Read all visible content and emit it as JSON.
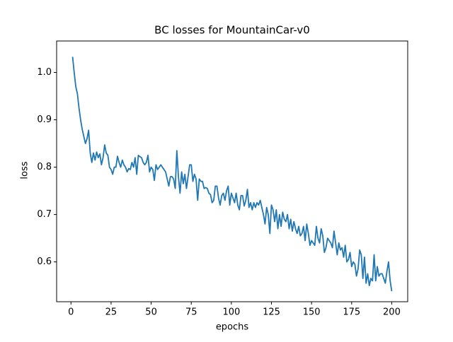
{
  "chart_data": {
    "type": "line",
    "title": "BC losses for MountainCar-v0",
    "xlabel": "epochs",
    "ylabel": "loss",
    "x": [
      1,
      2,
      3,
      4,
      5,
      6,
      7,
      8,
      9,
      10,
      11,
      12,
      13,
      14,
      15,
      16,
      17,
      18,
      19,
      20,
      21,
      22,
      23,
      24,
      25,
      26,
      27,
      28,
      29,
      30,
      31,
      32,
      33,
      34,
      35,
      36,
      37,
      38,
      39,
      40,
      41,
      42,
      43,
      44,
      45,
      46,
      47,
      48,
      49,
      50,
      51,
      52,
      53,
      54,
      55,
      56,
      57,
      58,
      59,
      60,
      61,
      62,
      63,
      64,
      65,
      66,
      67,
      68,
      69,
      70,
      71,
      72,
      73,
      74,
      75,
      76,
      77,
      78,
      79,
      80,
      81,
      82,
      83,
      84,
      85,
      86,
      87,
      88,
      89,
      90,
      91,
      92,
      93,
      94,
      95,
      96,
      97,
      98,
      99,
      100,
      101,
      102,
      103,
      104,
      105,
      106,
      107,
      108,
      109,
      110,
      111,
      112,
      113,
      114,
      115,
      116,
      117,
      118,
      119,
      120,
      121,
      122,
      123,
      124,
      125,
      126,
      127,
      128,
      129,
      130,
      131,
      132,
      133,
      134,
      135,
      136,
      137,
      138,
      139,
      140,
      141,
      142,
      143,
      144,
      145,
      146,
      147,
      148,
      149,
      150,
      151,
      152,
      153,
      154,
      155,
      156,
      157,
      158,
      159,
      160,
      161,
      162,
      163,
      164,
      165,
      166,
      167,
      168,
      169,
      170,
      171,
      172,
      173,
      174,
      175,
      176,
      177,
      178,
      179,
      180,
      181,
      182,
      183,
      184,
      185,
      186,
      187,
      188,
      189,
      190,
      191,
      192,
      193,
      194,
      195,
      196,
      197,
      198,
      199,
      200
    ],
    "series": [
      {
        "name": "loss",
        "color": "#1f77b4",
        "values": [
          1.033,
          1.0,
          0.97,
          0.955,
          0.925,
          0.9,
          0.88,
          0.865,
          0.85,
          0.86,
          0.878,
          0.83,
          0.81,
          0.83,
          0.815,
          0.832,
          0.82,
          0.828,
          0.805,
          0.82,
          0.847,
          0.83,
          0.825,
          0.8,
          0.795,
          0.785,
          0.8,
          0.8,
          0.823,
          0.81,
          0.8,
          0.815,
          0.805,
          0.8,
          0.79,
          0.797,
          0.795,
          0.81,
          0.8,
          0.82,
          0.785,
          0.825,
          0.822,
          0.82,
          0.81,
          0.805,
          0.81,
          0.825,
          0.79,
          0.8,
          0.795,
          0.772,
          0.805,
          0.795,
          0.8,
          0.805,
          0.8,
          0.795,
          0.79,
          0.775,
          0.76,
          0.78,
          0.78,
          0.775,
          0.755,
          0.835,
          0.78,
          0.745,
          0.79,
          0.765,
          0.785,
          0.755,
          0.78,
          0.805,
          0.805,
          0.77,
          0.785,
          0.775,
          0.73,
          0.775,
          0.77,
          0.77,
          0.755,
          0.757,
          0.755,
          0.745,
          0.742,
          0.725,
          0.73,
          0.76,
          0.76,
          0.735,
          0.72,
          0.74,
          0.745,
          0.73,
          0.75,
          0.76,
          0.72,
          0.745,
          0.735,
          0.725,
          0.745,
          0.72,
          0.71,
          0.74,
          0.74,
          0.718,
          0.73,
          0.753,
          0.715,
          0.725,
          0.71,
          0.725,
          0.715,
          0.725,
          0.72,
          0.73,
          0.715,
          0.7,
          0.68,
          0.715,
          0.7,
          0.66,
          0.72,
          0.71,
          0.685,
          0.71,
          0.67,
          0.7,
          0.675,
          0.705,
          0.69,
          0.685,
          0.7,
          0.67,
          0.69,
          0.665,
          0.685,
          0.67,
          0.66,
          0.675,
          0.655,
          0.66,
          0.675,
          0.645,
          0.68,
          0.66,
          0.635,
          0.645,
          0.64,
          0.635,
          0.675,
          0.65,
          0.64,
          0.67,
          0.655,
          0.62,
          0.63,
          0.65,
          0.645,
          0.64,
          0.63,
          0.665,
          0.64,
          0.615,
          0.64,
          0.625,
          0.63,
          0.61,
          0.635,
          0.6,
          0.605,
          0.62,
          0.59,
          0.6,
          0.595,
          0.57,
          0.585,
          0.625,
          0.615,
          0.565,
          0.61,
          0.555,
          0.575,
          0.55,
          0.565,
          0.56,
          0.615,
          0.56,
          0.59,
          0.57,
          0.575,
          0.575,
          0.565,
          0.555,
          0.58,
          0.6,
          0.56,
          0.538
        ]
      }
    ],
    "xlim": [
      -8.95,
      209.95
    ],
    "xticks": [
      0,
      25,
      50,
      75,
      100,
      125,
      150,
      175,
      200
    ],
    "ylim": [
      0.5159,
      1.0664
    ],
    "yticks": [
      0.6,
      0.7,
      0.8,
      0.9,
      {
        "value": 1,
        "label": "1.0"
      }
    ]
  }
}
